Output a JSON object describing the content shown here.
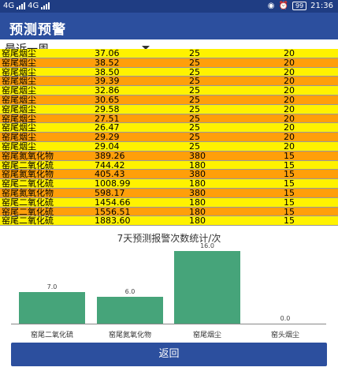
{
  "status": {
    "network_left": "4G",
    "network_right": "4G",
    "battery": "99",
    "time": "21:36"
  },
  "appbar": {
    "title": "预测预警"
  },
  "period_select": {
    "value": "最近一周"
  },
  "rows": [
    {
      "name": "窑尾烟尘",
      "value": "37.06",
      "limit": "25",
      "x": "20",
      "color": "#fff200"
    },
    {
      "name": "窑尾烟尘",
      "value": "38.52",
      "limit": "25",
      "x": "20",
      "color": "#ff9f0a"
    },
    {
      "name": "窑尾烟尘",
      "value": "38.50",
      "limit": "25",
      "x": "20",
      "color": "#fff200"
    },
    {
      "name": "窑尾烟尘",
      "value": "39.39",
      "limit": "25",
      "x": "20",
      "color": "#ff9f0a"
    },
    {
      "name": "窑尾烟尘",
      "value": "32.86",
      "limit": "25",
      "x": "20",
      "color": "#fff200"
    },
    {
      "name": "窑尾烟尘",
      "value": "30.65",
      "limit": "25",
      "x": "20",
      "color": "#ff9f0a"
    },
    {
      "name": "窑尾烟尘",
      "value": "29.58",
      "limit": "25",
      "x": "20",
      "color": "#fff200"
    },
    {
      "name": "窑尾烟尘",
      "value": "27.51",
      "limit": "25",
      "x": "20",
      "color": "#ff9f0a"
    },
    {
      "name": "窑尾烟尘",
      "value": "26.47",
      "limit": "25",
      "x": "20",
      "color": "#fff200"
    },
    {
      "name": "窑尾烟尘",
      "value": "29.29",
      "limit": "25",
      "x": "20",
      "color": "#ff9f0a"
    },
    {
      "name": "窑尾烟尘",
      "value": "29.04",
      "limit": "25",
      "x": "20",
      "color": "#fff200"
    },
    {
      "name": "窑尾氮氧化物",
      "value": "389.26",
      "limit": "380",
      "x": "15",
      "color": "#ff9f0a"
    },
    {
      "name": "窑尾二氧化硫",
      "value": "744.42",
      "limit": "180",
      "x": "15",
      "color": "#fff200"
    },
    {
      "name": "窑尾氮氧化物",
      "value": "405.43",
      "limit": "380",
      "x": "15",
      "color": "#ff9f0a"
    },
    {
      "name": "窑尾二氧化硫",
      "value": "1008.99",
      "limit": "180",
      "x": "15",
      "color": "#fff200"
    },
    {
      "name": "窑尾氮氧化物",
      "value": "598.17",
      "limit": "380",
      "x": "15",
      "color": "#ff9f0a"
    },
    {
      "name": "窑尾二氧化硫",
      "value": "1454.66",
      "limit": "180",
      "x": "15",
      "color": "#fff200"
    },
    {
      "name": "窑尾二氧化硫",
      "value": "1556.51",
      "limit": "180",
      "x": "15",
      "color": "#ff9f0a"
    },
    {
      "name": "窑尾二氧化硫",
      "value": "1883.60",
      "limit": "180",
      "x": "15",
      "color": "#fff200"
    }
  ],
  "chart_data": {
    "type": "bar",
    "title": "7天预测报警次数统计/次",
    "categories": [
      "窑尾二氧化硫",
      "窑尾氮氧化物",
      "窑尾烟尘",
      "窑头烟尘"
    ],
    "values": [
      7.0,
      6.0,
      16.0,
      0.0
    ],
    "value_labels": [
      "7.0",
      "6.0",
      "16.0",
      "0.0"
    ],
    "ylim": [
      0,
      16
    ],
    "bar_color": "#46a47a"
  },
  "back_button": {
    "label": "返回"
  }
}
